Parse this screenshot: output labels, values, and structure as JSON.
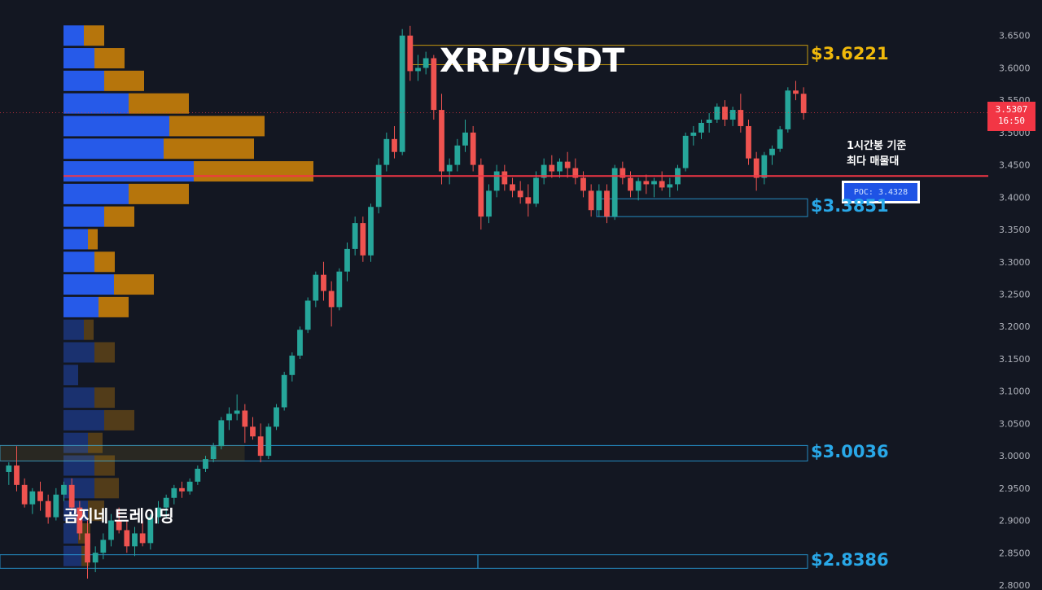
{
  "title": "XRP/USDT",
  "watermark": "곰지네 트레이딩",
  "poc": {
    "note_line1": "1시간봉 기준",
    "note_line2": "최다 매물대",
    "badge": "POC: 3.4328",
    "value": 3.4328,
    "color": "#f23645"
  },
  "last_price": {
    "value": "3.5307",
    "countdown": "16:50"
  },
  "zones": [
    {
      "label": "$3.6221",
      "value": 3.6221,
      "top": 3.635,
      "bottom": 3.605,
      "color": "#f0b90b"
    },
    {
      "label": "$3.3851",
      "value": 3.3851,
      "top": 3.3975,
      "bottom": 3.37,
      "color": "#29a8e8"
    },
    {
      "label": "$3.0036",
      "value": 3.0036,
      "top": 3.016,
      "bottom": 2.992,
      "color": "#29a8e8"
    },
    {
      "label": "$2.8386",
      "value": 2.8386,
      "top": 2.847,
      "bottom": 2.826,
      "color": "#29a8e8"
    }
  ],
  "colors": {
    "background": "#131722",
    "up": "#26a69a",
    "down": "#ef5350",
    "vp_buy": "#2962ff",
    "vp_sell": "#c9800a",
    "axis_text": "#b2b5be"
  },
  "chart_data": {
    "type": "candlestick",
    "y_axis": {
      "min": 2.8,
      "max": 3.7,
      "ticks": [
        "3.6500",
        "3.6000",
        "3.5500",
        "3.5000",
        "3.4500",
        "3.4000",
        "3.3500",
        "3.3000",
        "3.2500",
        "3.2000",
        "3.1500",
        "3.1000",
        "3.0500",
        "3.0000",
        "2.9500",
        "2.9000",
        "2.8500",
        "2.8000"
      ]
    },
    "grid": false,
    "volume_profile": {
      "levels": [
        3.65,
        3.615,
        3.58,
        3.545,
        3.51,
        3.475,
        3.44,
        3.405,
        3.37,
        3.335,
        3.3,
        3.265,
        3.23,
        3.195,
        3.16,
        3.125,
        3.09,
        3.055,
        3.02,
        2.985,
        2.95,
        2.915,
        2.88,
        2.845
      ],
      "buy": [
        25,
        38,
        50,
        80,
        130,
        123,
        160,
        80,
        50,
        30,
        38,
        62,
        43,
        25,
        38,
        18,
        38,
        50,
        30,
        38,
        38,
        30,
        18,
        22
      ],
      "sell": [
        25,
        37,
        49,
        74,
        117,
        111,
        147,
        74,
        37,
        12,
        25,
        49,
        37,
        12,
        25,
        0,
        25,
        37,
        18,
        25,
        30,
        20,
        15,
        10
      ]
    },
    "candles": [
      [
        2.975,
        2.99,
        2.955,
        2.985
      ],
      [
        2.985,
        3.015,
        2.945,
        2.955
      ],
      [
        2.955,
        2.965,
        2.92,
        2.925
      ],
      [
        2.925,
        2.95,
        2.91,
        2.945
      ],
      [
        2.945,
        2.96,
        2.915,
        2.93
      ],
      [
        2.93,
        2.94,
        2.895,
        2.905
      ],
      [
        2.905,
        2.95,
        2.9,
        2.94
      ],
      [
        2.94,
        2.96,
        2.93,
        2.955
      ],
      [
        2.955,
        2.965,
        2.915,
        2.92
      ],
      [
        2.92,
        2.93,
        2.87,
        2.88
      ],
      [
        2.88,
        2.9,
        2.81,
        2.835
      ],
      [
        2.835,
        2.86,
        2.82,
        2.85
      ],
      [
        2.85,
        2.88,
        2.84,
        2.87
      ],
      [
        2.87,
        2.91,
        2.86,
        2.9
      ],
      [
        2.9,
        2.92,
        2.88,
        2.885
      ],
      [
        2.885,
        2.9,
        2.85,
        2.86
      ],
      [
        2.86,
        2.89,
        2.845,
        2.88
      ],
      [
        2.88,
        2.9,
        2.86,
        2.865
      ],
      [
        2.865,
        2.91,
        2.855,
        2.905
      ],
      [
        2.905,
        2.93,
        2.895,
        2.92
      ],
      [
        2.92,
        2.94,
        2.905,
        2.935
      ],
      [
        2.935,
        2.955,
        2.925,
        2.95
      ],
      [
        2.95,
        2.96,
        2.935,
        2.945
      ],
      [
        2.945,
        2.965,
        2.94,
        2.96
      ],
      [
        2.96,
        2.985,
        2.955,
        2.98
      ],
      [
        2.98,
        3.0,
        2.975,
        2.995
      ],
      [
        2.995,
        3.02,
        2.99,
        3.015
      ],
      [
        3.015,
        3.06,
        3.01,
        3.055
      ],
      [
        3.055,
        3.075,
        3.04,
        3.065
      ],
      [
        3.065,
        3.095,
        3.055,
        3.07
      ],
      [
        3.07,
        3.08,
        3.02,
        3.045
      ],
      [
        3.045,
        3.06,
        3.025,
        3.03
      ],
      [
        3.03,
        3.05,
        2.99,
        3.0
      ],
      [
        3.0,
        3.05,
        2.995,
        3.045
      ],
      [
        3.045,
        3.08,
        3.04,
        3.075
      ],
      [
        3.075,
        3.13,
        3.07,
        3.125
      ],
      [
        3.125,
        3.16,
        3.115,
        3.155
      ],
      [
        3.155,
        3.2,
        3.15,
        3.195
      ],
      [
        3.195,
        3.245,
        3.19,
        3.24
      ],
      [
        3.24,
        3.285,
        3.23,
        3.28
      ],
      [
        3.28,
        3.3,
        3.24,
        3.255
      ],
      [
        3.255,
        3.27,
        3.2,
        3.23
      ],
      [
        3.23,
        3.29,
        3.225,
        3.285
      ],
      [
        3.285,
        3.33,
        3.27,
        3.32
      ],
      [
        3.32,
        3.37,
        3.31,
        3.36
      ],
      [
        3.36,
        3.37,
        3.3,
        3.31
      ],
      [
        3.31,
        3.39,
        3.3,
        3.385
      ],
      [
        3.385,
        3.46,
        3.375,
        3.45
      ],
      [
        3.45,
        3.5,
        3.44,
        3.49
      ],
      [
        3.49,
        3.51,
        3.46,
        3.47
      ],
      [
        3.47,
        3.66,
        3.465,
        3.65
      ],
      [
        3.65,
        3.665,
        3.58,
        3.595
      ],
      [
        3.595,
        3.62,
        3.58,
        3.6
      ],
      [
        3.6,
        3.625,
        3.59,
        3.615
      ],
      [
        3.615,
        3.62,
        3.52,
        3.535
      ],
      [
        3.535,
        3.56,
        3.42,
        3.44
      ],
      [
        3.44,
        3.46,
        3.42,
        3.45
      ],
      [
        3.45,
        3.49,
        3.44,
        3.48
      ],
      [
        3.48,
        3.52,
        3.47,
        3.5
      ],
      [
        3.5,
        3.51,
        3.44,
        3.45
      ],
      [
        3.45,
        3.46,
        3.35,
        3.37
      ],
      [
        3.37,
        3.42,
        3.36,
        3.41
      ],
      [
        3.41,
        3.45,
        3.4,
        3.44
      ],
      [
        3.44,
        3.45,
        3.41,
        3.42
      ],
      [
        3.42,
        3.43,
        3.4,
        3.41
      ],
      [
        3.41,
        3.425,
        3.39,
        3.4
      ],
      [
        3.4,
        3.42,
        3.37,
        3.39
      ],
      [
        3.39,
        3.44,
        3.385,
        3.43
      ],
      [
        3.43,
        3.46,
        3.42,
        3.45
      ],
      [
        3.45,
        3.465,
        3.43,
        3.44
      ],
      [
        3.44,
        3.46,
        3.43,
        3.455
      ],
      [
        3.455,
        3.47,
        3.43,
        3.445
      ],
      [
        3.445,
        3.46,
        3.42,
        3.43
      ],
      [
        3.43,
        3.44,
        3.4,
        3.41
      ],
      [
        3.41,
        3.42,
        3.37,
        3.38
      ],
      [
        3.38,
        3.42,
        3.37,
        3.41
      ],
      [
        3.41,
        3.42,
        3.36,
        3.37
      ],
      [
        3.37,
        3.45,
        3.365,
        3.445
      ],
      [
        3.445,
        3.455,
        3.42,
        3.43
      ],
      [
        3.43,
        3.44,
        3.4,
        3.41
      ],
      [
        3.41,
        3.43,
        3.395,
        3.425
      ],
      [
        3.425,
        3.435,
        3.405,
        3.42
      ],
      [
        3.42,
        3.43,
        3.4,
        3.425
      ],
      [
        3.425,
        3.44,
        3.41,
        3.415
      ],
      [
        3.415,
        3.43,
        3.4,
        3.42
      ],
      [
        3.42,
        3.45,
        3.41,
        3.445
      ],
      [
        3.445,
        3.5,
        3.44,
        3.495
      ],
      [
        3.495,
        3.51,
        3.48,
        3.5
      ],
      [
        3.5,
        3.52,
        3.49,
        3.515
      ],
      [
        3.515,
        3.53,
        3.5,
        3.52
      ],
      [
        3.52,
        3.545,
        3.515,
        3.54
      ],
      [
        3.54,
        3.55,
        3.51,
        3.52
      ],
      [
        3.52,
        3.54,
        3.51,
        3.535
      ],
      [
        3.535,
        3.56,
        3.5,
        3.51
      ],
      [
        3.51,
        3.52,
        3.45,
        3.46
      ],
      [
        3.46,
        3.47,
        3.41,
        3.43
      ],
      [
        3.43,
        3.47,
        3.42,
        3.465
      ],
      [
        3.465,
        3.48,
        3.45,
        3.475
      ],
      [
        3.475,
        3.51,
        3.47,
        3.505
      ],
      [
        3.505,
        3.57,
        3.5,
        3.565
      ],
      [
        3.565,
        3.58,
        3.55,
        3.56
      ],
      [
        3.56,
        3.57,
        3.52,
        3.53
      ]
    ]
  }
}
